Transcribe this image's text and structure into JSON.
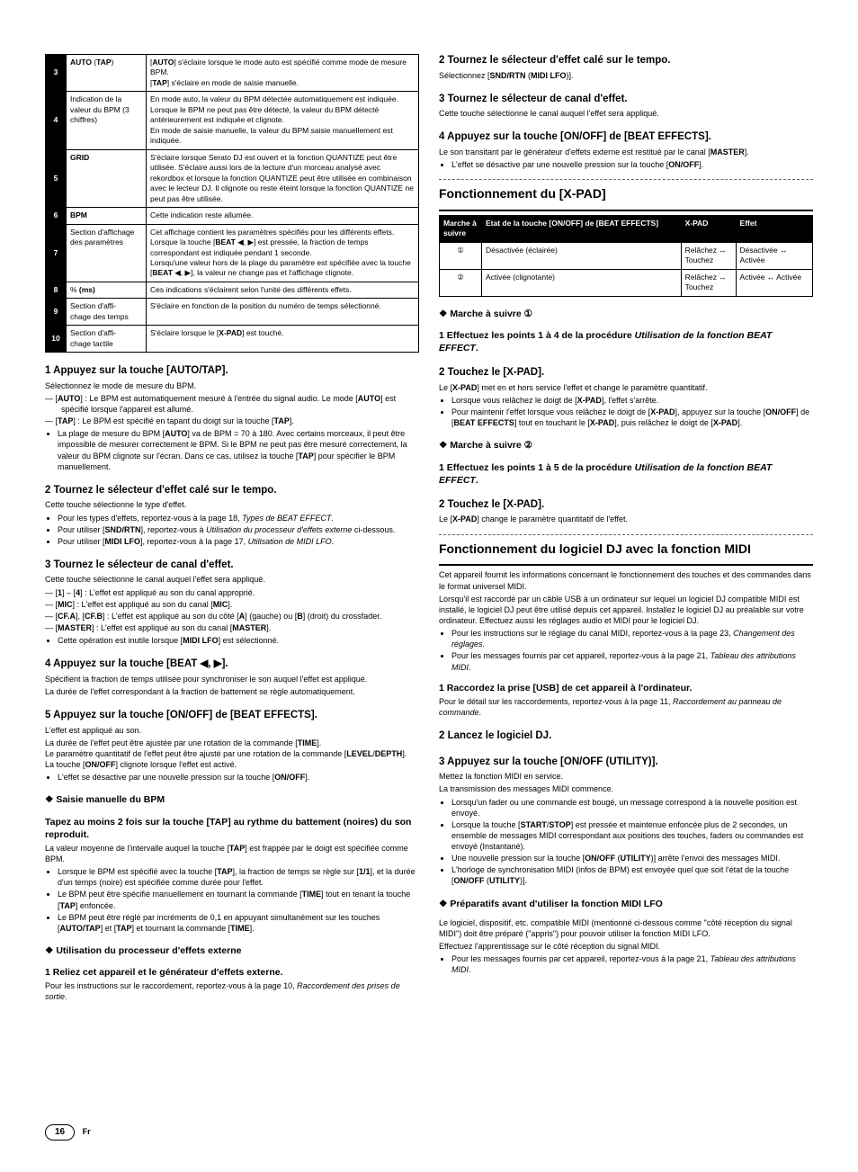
{
  "left": {
    "table_rows": [
      {
        "num": "3",
        "label_html": "<b>AUTO</b> (<b>TAP</b>)",
        "desc_html": "[<b>AUTO</b>] s'éclaire lorsque le mode auto est spécifié comme mode de mesure BPM.<br>[<b>TAP</b>] s'éclaire en mode de saisie manuelle."
      },
      {
        "num": "4",
        "label_html": "Indication de la valeur du BPM (3 chiffres)",
        "desc_html": "En mode auto, la valeur du BPM détectée automatiquement est indiquée.<br>Lorsque le BPM ne peut pas être détecté, la valeur du BPM détecté antérieurement est indiquée et clignote.<br>En mode de saisie manuelle, la valeur du BPM saisie manuellement est indiquée."
      },
      {
        "num": "5",
        "label_html": "<b>GRID</b>",
        "desc_html": "S'éclaire lorsque Serato DJ est ouvert et la fonction QUANTIZE peut être utilisée. S'éclaire aussi lors de la lecture d'un morceau analysé avec rekordbox et lorsque la fonction QUANTIZE peut être utilisée en combinaison avec le lecteur DJ. Il clignote ou reste éteint lorsque la fonction QUANTIZE ne peut pas être utilisée."
      },
      {
        "num": "6",
        "label_html": "<b>BPM</b>",
        "desc_html": "Cette indication reste allumée."
      },
      {
        "num": "7",
        "label_html": "Section d'affichage des paramètres",
        "desc_html": "Cet affichage contient les paramètres spécifiés pour les différents effets.<br>Lorsque la touche [<b>BEAT</b> ◀, ▶] est pressée, la fraction de temps correspondant est indiquée pendant 1 seconde.<br>Lorsqu'une valeur hors de la plage du paramètre est spécifiée avec la touche [<b>BEAT</b> ◀, ▶], la valeur ne change pas et l'affichage clignote."
      },
      {
        "num": "8",
        "label_html": "% <b>(ms)</b>",
        "desc_html": "Ces indications s'éclairent selon l'unité des différents effets."
      },
      {
        "num": "9",
        "label_html": "Section d'affi-<br>chage des temps",
        "desc_html": "S'éclaire en fonction de la position du numéro de temps sélectionné."
      },
      {
        "num": "10",
        "label_html": "Section d'affi-<br>chage tactile",
        "desc_html": "S'éclaire lorsque le [<b>X-PAD</b>] est touché."
      }
    ],
    "s1_title": "1  Appuyez sur la touche [AUTO/TAP].",
    "s1_p1": "Sélectionnez le mode de mesure du BPM.",
    "s1_dash": [
      "[<b>AUTO</b>] : Le BPM est automatiquement mesuré à l'entrée du signal audio. Le mode [<b>AUTO</b>] est spécifié lorsque l'appareil est allumé.",
      "[<b>TAP</b>] : Le BPM est spécifié en tapant du doigt sur la touche [<b>TAP</b>]."
    ],
    "s1_bullet_html": "La plage de mesure du BPM [<b>AUTO</b>] va de BPM = 70 à 180. Avec certains morceaux, il peut être impossible de mesurer correctement le BPM. Si le BPM ne peut pas être mesuré correctement, la valeur du BPM clignote sur l'écran. Dans ce cas, utilisez la touche [<b>TAP</b>] pour spécifier le BPM manuellement.",
    "s2_title": "2  Tournez le sélecteur d'effet calé sur le tempo.",
    "s2_p": "Cette touche sélectionne le type d'effet.",
    "s2_bullets": [
      "Pour les types d'effets, reportez-vous à la page 18, <i>Types de BEAT EFFECT</i>.",
      "Pour utiliser [<b>SND/RTN</b>], reportez-vous à <i>Utilisation du processeur d'effets externe</i> ci-dessous.",
      "Pour utiliser [<b>MIDI LFO</b>], reportez-vous à la page 17, <i>Utilisation de MIDI LFO</i>."
    ],
    "s3_title": "3  Tournez le sélecteur de canal d'effet.",
    "s3_p": "Cette touche sélectionne le canal auquel l'effet sera appliqué.",
    "s3_dash": [
      "[<b>1</b>] – [<b>4</b>] : L'effet est appliqué au son du canal approprié.",
      "[<b>MIC</b>] : L'effet est appliqué au son du canal [<b>MIC</b>].",
      "[<b>CF.A</b>], [<b>CF.B</b>] : L'effet est appliqué au son du côté [<b>A</b>] (gauche) ou [<b>B</b>] (droit) du crossfader.",
      "[<b>MASTER</b>] : L'effet est appliqué au son du canal [<b>MASTER</b>]."
    ],
    "s3_bullet": "Cette opération est inutile lorsque [<b>MIDI LFO</b>] est sélectionné.",
    "s4_title": "4  Appuyez sur la touche [BEAT ◀, ▶].",
    "s4_p1": "Spécifient la fraction de temps utilisée pour synchroniser le son auquel l'effet est appliqué.",
    "s4_p2": "La durée de l'effet correspondant à la fraction de battement se règle automatiquement.",
    "s5_title": "5  Appuyez sur la touche [ON/OFF] de [BEAT EFFECTS].",
    "s5_p1": "L'effet est appliqué au son.",
    "s5_p2_html": "La durée de l'effet peut être ajustée par une rotation de la commande [<b>TIME</b>].<br>Le paramètre quantitatif de l'effet peut être ajusté par une rotation de la commande [<b>LEVEL</b>/<b>DEPTH</b>].<br>La touche [<b>ON/OFF</b>] clignote lorsque l'effet est activé.",
    "s5_bullet": "L'effet se désactive par une nouvelle pression sur la touche [<b>ON/OFF</b>].",
    "d1_title": "Saisie manuelle du BPM",
    "d1_h": "Tapez au moins 2 fois sur la touche [TAP] au rythme du battement (noires) du son reproduit.",
    "d1_p_html": "La valeur moyenne de l'intervalle auquel la touche [<b>TAP</b>] est frappée par le doigt est spécifiée comme BPM.",
    "d1_bullets": [
      "Lorsque le BPM est spécifié avec la touche [<b>TAP</b>], la fraction de temps se règle sur [<b>1/1</b>], et la durée d'un temps (noire) est spécifiée comme durée pour l'effet.",
      "Le BPM peut être spécifié manuellement en tournant la commande [<b>TIME</b>] tout en tenant la touche [<b>TAP</b>] enfoncée.",
      "Le BPM peut être réglé par incréments de 0,1 en appuyant simultanément sur les touches [<b>AUTO/TAP</b>] et [<b>TAP</b>] et tournant la commande [<b>TIME</b>]."
    ],
    "d2_title": "Utilisation du processeur d'effets externe",
    "d2_h": "1  Reliez cet appareil et le générateur d'effets externe.",
    "d2_p_html": "Pour les instructions sur le raccordement, reportez-vous à la page 10, <i>Raccordement des prises de sortie</i>."
  },
  "right": {
    "s2_title": "2  Tournez le sélecteur d'effet calé sur le tempo.",
    "s2_p_html": "Sélectionnez [<b>SND/RTN</b> (<b>MIDI LFO</b>)].",
    "s3_title": "3  Tournez le sélecteur de canal d'effet.",
    "s3_p": "Cette touche sélectionne le canal auquel l'effet sera appliqué.",
    "s4_title": "4  Appuyez sur la touche [ON/OFF] de [BEAT EFFECTS].",
    "s4_p_html": "Le son transitant par le générateur d'effets externe est restitué par le canal [<b>MASTER</b>].",
    "s4_bullet": "L'effet se désactive par une nouvelle pression sur la touche [<b>ON/OFF</b>].",
    "big1": "Fonctionnement du [X-PAD]",
    "xpad_head": [
      "Marche à suivre",
      "Etat de la touche [ON/OFF] de [BEAT EFFECTS]",
      "X-PAD",
      "Effet"
    ],
    "xpad_rows": [
      [
        "①",
        "Désactivée (éclairée)",
        "Relâchez ↔<br>Touchez",
        "Désactivée ↔<br>Activée"
      ],
      [
        "②",
        "Activée (clignotante)",
        "Relâchez ↔<br>Touchez",
        "Activée ↔ Activée"
      ]
    ],
    "m1_title": "Marche à suivre ①",
    "m1_h": "1  Effectuez les points 1 à 4 de la procédure <i>Utilisation de la fonction BEAT EFFECT</i>.",
    "m1_h2": "2  Touchez le [X-PAD].",
    "m1_p_html": "Le [<b>X-PAD</b>] met en et hors service l'effet et change le paramètre quantitatif.",
    "m1_bullets": [
      "Lorsque vous relâchez le doigt de [<b>X-PAD</b>], l'effet s'arrête.",
      "Pour maintenir l'effet lorsque vous relâchez le doigt de [<b>X-PAD</b>], appuyez sur la touche [<b>ON/OFF</b>] de [<b>BEAT EFFECTS</b>] tout en touchant le [<b>X-PAD</b>], puis relâchez le doigt de [<b>X-PAD</b>]."
    ],
    "m2_title": "Marche à suivre ②",
    "m2_h": "1  Effectuez les points 1 à 5 de la procédure <i>Utilisation de la fonction BEAT EFFECT</i>.",
    "m2_h2": "2  Touchez le [X-PAD].",
    "m2_p_html": "Le [<b>X-PAD</b>] change le paramètre quantitatif de l'effet.",
    "big2": "Fonctionnement du logiciel DJ avec la fonction MIDI",
    "midi_p1": "Cet appareil fournit les informations concernant le fonctionnement des touches et des commandes dans le format universel MIDI.",
    "midi_p2": "Lorsqu'il est raccordé par un câble USB à un ordinateur sur lequel un logiciel DJ compatible MIDI est installé, le logiciel DJ peut être utilisé depuis cet appareil. Installez le logiciel DJ au préalable sur votre ordinateur. Effectuez aussi les réglages audio et MIDI pour le logiciel DJ.",
    "midi_bullets": [
      "Pour les instructions sur le réglage du canal MIDI, reportez-vous à la page 23, <i>Changement des réglages</i>.",
      "Pour les messages fournis par cet appareil, reportez-vous à la page 21, <i>Tableau des attributions MIDI</i>."
    ],
    "usb_h": "1  Raccordez la prise [USB] de cet appareil à l'ordinateur.",
    "usb_p_html": "Pour le détail sur les raccordements, reportez-vous à la page 11, <i>Raccordement au panneau de commande</i>.",
    "dj_h": "2  Lancez le logiciel DJ.",
    "ut_h": "3  Appuyez sur la touche [ON/OFF (UTILITY)].",
    "ut_p1": "Mettez la fonction MIDI en service.",
    "ut_p2": "La transmission des messages MIDI commence.",
    "ut_bullets": [
      "Lorsqu'un fader ou une commande est bougé, un message correspond à la nouvelle position est envoyé.",
      "Lorsque la touche [<b>START</b>/<b>STOP</b>] est pressée et maintenue enfoncée plus de 2 secondes, un ensemble de messages MIDI correspondant aux positions des touches, faders ou commandes est envoyé (Instantané).",
      "Une nouvelle pression sur la touche [<b>ON/OFF</b> (<b>UTILITY</b>)] arrête l'envoi des messages MIDI.",
      "L'horloge de synchronisation MIDI (infos de BPM) est envoyée quel que soit l'état de la touche [<b>ON/OFF</b> (<b>UTILITY</b>)]."
    ],
    "prep_title": "Préparatifs avant d'utiliser la fonction MIDI LFO",
    "prep_p1": "Le logiciel, dispositif, etc. compatible MIDI (mentionné ci-dessous comme \"côté réception du signal MIDI\") doit être préparé (\"appris\") pour pouvoir utiliser la fonction MIDI LFO.",
    "prep_p2": "Effectuez l'apprentissage sur le côté réception du signal MIDI.",
    "prep_bullet": "Pour les messages fournis par cet appareil, reportez-vous à la page 21, <i>Tableau des attributions MIDI</i>."
  },
  "page_number": "16",
  "lang": "Fr"
}
